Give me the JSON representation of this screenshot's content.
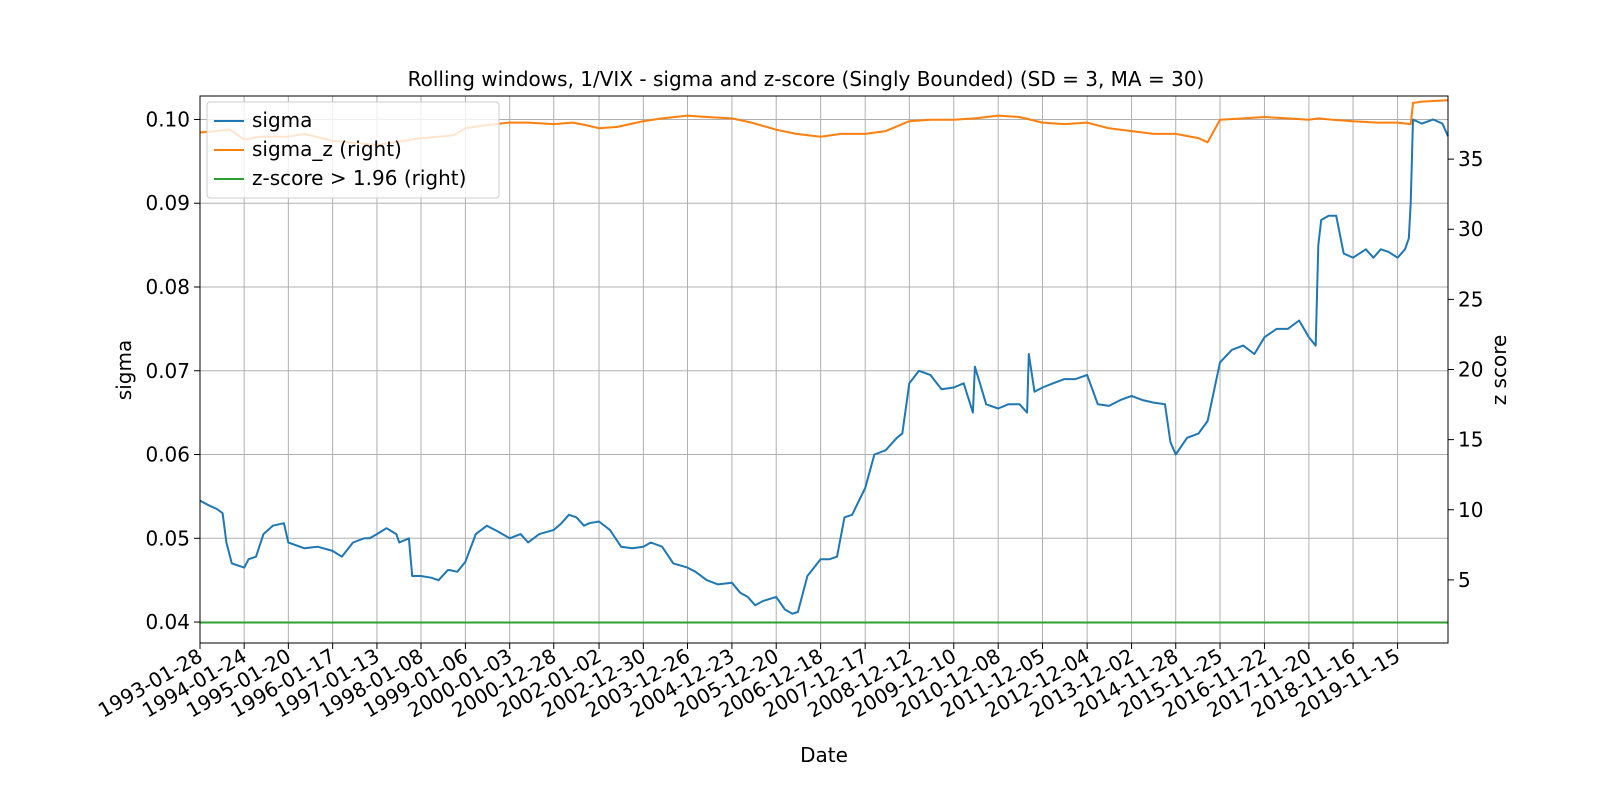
{
  "chart_data": {
    "type": "line",
    "title": "Rolling windows, 1/VIX - sigma and z-score (Singly Bounded) (SD = 3, MA = 30)",
    "xlabel": "Date",
    "ylabel": "sigma",
    "y2label": "z score",
    "xlim": [
      "1993-01-28",
      "2020-12-31"
    ],
    "ylim": [
      0.0375,
      0.1028
    ],
    "y2lim": [
      0.5,
      39.5
    ],
    "grid": true,
    "legend_position": "top-left",
    "x_tick_labels": [
      "1993-01-28",
      "1994-01-24",
      "1995-01-20",
      "1996-01-17",
      "1997-01-13",
      "1998-01-08",
      "1999-01-06",
      "2000-01-03",
      "2000-12-28",
      "2002-01-02",
      "2002-12-30",
      "2003-12-26",
      "2004-12-23",
      "2005-12-20",
      "2006-12-18",
      "2007-12-17",
      "2008-12-12",
      "2009-12-10",
      "2010-12-08",
      "2011-12-05",
      "2012-12-04",
      "2013-12-02",
      "2014-11-28",
      "2015-11-25",
      "2016-11-22",
      "2017-11-20",
      "2018-11-16",
      "2019-11-15"
    ],
    "y_tick_labels": [
      "0.04",
      "0.05",
      "0.06",
      "0.07",
      "0.08",
      "0.09",
      "0.10"
    ],
    "y2_tick_labels": [
      "5",
      "10",
      "15",
      "20",
      "25",
      "30",
      "35"
    ],
    "series": [
      {
        "name": "sigma",
        "axis": "left",
        "color": "#1f77b4",
        "x": [
          "1993-01-28",
          "1993-04-01",
          "1993-06-15",
          "1993-08-01",
          "1993-09-01",
          "1993-10-15",
          "1994-01-24",
          "1994-03-01",
          "1994-05-01",
          "1994-07-01",
          "1994-09-15",
          "1994-12-15",
          "1995-01-20",
          "1995-06-01",
          "1995-09-15",
          "1996-01-17",
          "1996-04-01",
          "1996-07-01",
          "1996-10-01",
          "1996-11-15",
          "1997-01-13",
          "1997-04-01",
          "1997-06-20",
          "1997-07-15",
          "1997-10-01",
          "1997-10-28",
          "1998-01-08",
          "1998-04-01",
          "1998-06-01",
          "1998-08-15",
          "1998-09-01",
          "1998-11-01",
          "1999-01-06",
          "1999-04-01",
          "1999-07-01",
          "1999-10-01",
          "2000-01-03",
          "2000-04-01",
          "2000-06-01",
          "2000-09-01",
          "2000-12-28",
          "2001-03-01",
          "2001-05-01",
          "2001-07-01",
          "2001-09-01",
          "2001-10-15",
          "2002-01-02",
          "2002-04-01",
          "2002-07-01",
          "2002-10-01",
          "2002-12-30",
          "2003-03-01",
          "2003-06-01",
          "2003-09-01",
          "2003-12-26",
          "2004-03-01",
          "2004-06-01",
          "2004-09-01",
          "2004-12-23",
          "2005-03-01",
          "2005-05-01",
          "2005-07-01",
          "2005-09-01",
          "2005-12-20",
          "2006-03-01",
          "2006-05-01",
          "2006-06-15",
          "2006-09-01",
          "2006-12-18",
          "2007-03-01",
          "2007-05-01",
          "2007-07-01",
          "2007-09-01",
          "2007-12-17",
          "2008-03-01",
          "2008-06-01",
          "2008-09-01",
          "2008-10-15",
          "2008-12-12",
          "2009-03-01",
          "2009-06-01",
          "2009-09-01",
          "2009-12-10",
          "2010-03-01",
          "2010-05-15",
          "2010-06-01",
          "2010-09-01",
          "2010-12-08",
          "2011-03-01",
          "2011-06-01",
          "2011-08-01",
          "2011-08-15",
          "2011-10-01",
          "2011-12-05",
          "2012-03-01",
          "2012-06-01",
          "2012-09-01",
          "2012-12-04",
          "2013-03-01",
          "2013-06-01",
          "2013-09-01",
          "2013-12-02",
          "2014-03-01",
          "2014-06-01",
          "2014-09-01",
          "2014-10-15",
          "2014-11-28",
          "2015-03-01",
          "2015-06-01",
          "2015-08-15",
          "2015-11-25",
          "2016-03-01",
          "2016-06-01",
          "2016-09-01",
          "2016-11-22",
          "2017-03-01",
          "2017-06-01",
          "2017-09-01",
          "2017-11-20",
          "2018-01-15",
          "2018-02-05",
          "2018-03-01",
          "2018-05-01",
          "2018-07-01",
          "2018-09-01",
          "2018-11-16",
          "2019-03-01",
          "2019-05-01",
          "2019-07-01",
          "2019-09-01",
          "2019-11-15",
          "2020-01-15",
          "2020-02-15",
          "2020-03-01",
          "2020-03-20",
          "2020-06-01",
          "2020-09-01",
          "2020-11-15",
          "2020-12-31"
        ],
        "values": [
          0.0545,
          0.054,
          0.0535,
          0.053,
          0.0495,
          0.047,
          0.0465,
          0.0475,
          0.0478,
          0.0505,
          0.0515,
          0.0518,
          0.0495,
          0.0488,
          0.049,
          0.0485,
          0.0478,
          0.0495,
          0.05,
          0.05,
          0.0505,
          0.0512,
          0.0505,
          0.0495,
          0.05,
          0.0455,
          0.0455,
          0.0453,
          0.045,
          0.0462,
          0.0462,
          0.046,
          0.0472,
          0.0505,
          0.0515,
          0.0508,
          0.05,
          0.0505,
          0.0495,
          0.0505,
          0.051,
          0.0518,
          0.0528,
          0.0525,
          0.0515,
          0.0518,
          0.052,
          0.051,
          0.049,
          0.0488,
          0.049,
          0.0495,
          0.049,
          0.047,
          0.0465,
          0.046,
          0.045,
          0.0445,
          0.0447,
          0.0435,
          0.043,
          0.042,
          0.0425,
          0.043,
          0.0415,
          0.041,
          0.0412,
          0.0455,
          0.0475,
          0.0475,
          0.0478,
          0.0525,
          0.0528,
          0.056,
          0.06,
          0.0605,
          0.062,
          0.0625,
          0.0685,
          0.07,
          0.0695,
          0.0678,
          0.068,
          0.0685,
          0.065,
          0.0705,
          0.066,
          0.0655,
          0.066,
          0.066,
          0.065,
          0.072,
          0.0675,
          0.068,
          0.0685,
          0.069,
          0.069,
          0.0695,
          0.066,
          0.0658,
          0.0665,
          0.067,
          0.0665,
          0.0662,
          0.066,
          0.0615,
          0.06,
          0.062,
          0.0625,
          0.064,
          0.071,
          0.0725,
          0.073,
          0.072,
          0.074,
          0.075,
          0.075,
          0.076,
          0.074,
          0.073,
          0.085,
          0.088,
          0.0885,
          0.0885,
          0.084,
          0.0835,
          0.0845,
          0.0835,
          0.0845,
          0.0842,
          0.0835,
          0.0845,
          0.0858,
          0.09,
          0.1,
          0.0995,
          0.1,
          0.0995,
          0.098
        ]
      },
      {
        "name": "sigma_z (right)",
        "axis": "right",
        "color": "#ff7f0e",
        "x": [
          "1993-01-28",
          "1993-06-01",
          "1993-10-01",
          "1994-01-24",
          "1994-06-01",
          "1995-01-20",
          "1995-06-01",
          "1996-01-17",
          "1996-06-01",
          "1997-01-13",
          "1997-06-01",
          "1998-01-08",
          "1998-06-01",
          "1998-10-01",
          "1999-01-06",
          "1999-06-01",
          "2000-01-03",
          "2000-06-01",
          "2000-12-28",
          "2001-06-01",
          "2001-10-01",
          "2002-01-02",
          "2002-06-01",
          "2002-12-30",
          "2003-06-01",
          "2003-12-26",
          "2004-06-01",
          "2004-12-23",
          "2005-06-01",
          "2005-12-20",
          "2006-06-01",
          "2006-12-18",
          "2007-06-01",
          "2007-12-17",
          "2008-06-01",
          "2008-12-12",
          "2009-06-01",
          "2009-12-10",
          "2010-06-01",
          "2010-12-08",
          "2011-06-01",
          "2011-12-05",
          "2012-06-01",
          "2012-12-04",
          "2013-06-01",
          "2013-12-02",
          "2014-06-01",
          "2014-11-28",
          "2015-06-01",
          "2015-08-15",
          "2015-11-25",
          "2016-06-01",
          "2016-11-22",
          "2017-06-01",
          "2017-11-20",
          "2018-02-05",
          "2018-06-01",
          "2018-11-16",
          "2019-06-01",
          "2019-11-15",
          "2020-03-01",
          "2020-03-20",
          "2020-06-01",
          "2020-12-31"
        ],
        "values": [
          36.9,
          37.0,
          37.1,
          36.4,
          36.6,
          36.6,
          36.8,
          36.3,
          36.2,
          36.0,
          36.2,
          36.5,
          36.6,
          36.7,
          37.2,
          37.4,
          37.6,
          37.6,
          37.5,
          37.6,
          37.4,
          37.2,
          37.3,
          37.7,
          37.9,
          38.1,
          38.0,
          37.9,
          37.6,
          37.1,
          36.8,
          36.6,
          36.8,
          36.8,
          37.0,
          37.7,
          37.8,
          37.8,
          37.9,
          38.1,
          38.0,
          37.6,
          37.5,
          37.6,
          37.2,
          37.0,
          36.8,
          36.8,
          36.5,
          36.2,
          37.8,
          37.9,
          38.0,
          37.9,
          37.8,
          37.9,
          37.8,
          37.7,
          37.6,
          37.6,
          37.5,
          39.0,
          39.1,
          39.2
        ]
      },
      {
        "name": "z-score > 1.96 (right)",
        "axis": "right",
        "color": "#2ca02c",
        "x": [
          "1993-01-28",
          "2020-12-31"
        ],
        "values": [
          1.96,
          1.96
        ]
      }
    ]
  }
}
